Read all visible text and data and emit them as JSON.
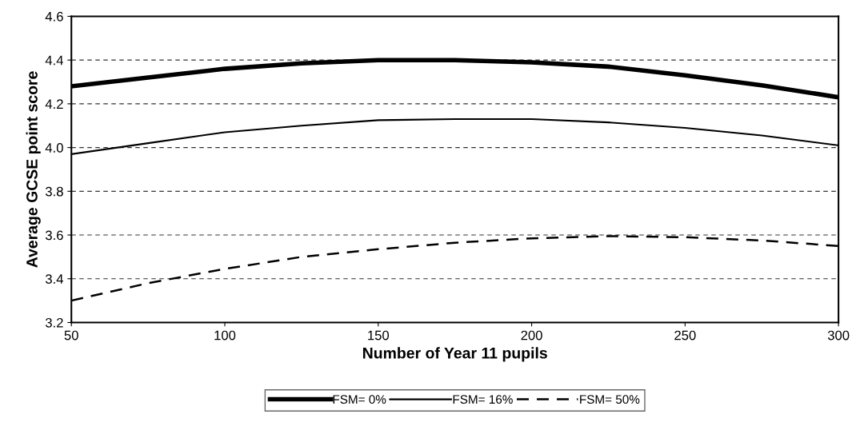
{
  "chart_data": {
    "type": "line",
    "xlabel": "Number of Year 11 pupils",
    "ylabel": "Average GCSE point score",
    "x": [
      50,
      75,
      100,
      125,
      150,
      175,
      200,
      225,
      250,
      275,
      300
    ],
    "series": [
      {
        "name": "FSM= 0%",
        "color": "#000000",
        "line_style": "solid",
        "values": [
          4.28,
          4.32,
          4.36,
          4.385,
          4.4,
          4.4,
          4.39,
          4.37,
          4.33,
          4.285,
          4.23
        ]
      },
      {
        "name": "FSM= 16%",
        "color": "#000000",
        "line_style": "solid",
        "values": [
          3.97,
          4.02,
          4.07,
          4.1,
          4.125,
          4.13,
          4.13,
          4.115,
          4.09,
          4.055,
          4.01
        ]
      },
      {
        "name": "FSM= 50%",
        "color": "#000000",
        "line_style": "dashed",
        "values": [
          3.3,
          3.38,
          3.445,
          3.5,
          3.535,
          3.565,
          3.585,
          3.595,
          3.59,
          3.575,
          3.55
        ]
      }
    ],
    "xlim": [
      50,
      300
    ],
    "xticks": [
      50,
      100,
      150,
      200,
      250,
      300
    ],
    "ylim": [
      3.2,
      4.6
    ],
    "yticks": [
      {
        "value": 3.2,
        "label": "3.2"
      },
      {
        "value": 3.4,
        "label": "3.4"
      },
      {
        "value": 3.6,
        "label": "3.6"
      },
      {
        "value": 3.8,
        "label": "3.8"
      },
      {
        "value": 4.0,
        "label": "4.0"
      },
      {
        "value": 4.2,
        "label": "4.2"
      },
      {
        "value": 4.4,
        "label": "4.4"
      },
      {
        "value": 4.6,
        "label": "4.6"
      }
    ],
    "grid": "y",
    "legend": "bottom",
    "marker": "none"
  }
}
